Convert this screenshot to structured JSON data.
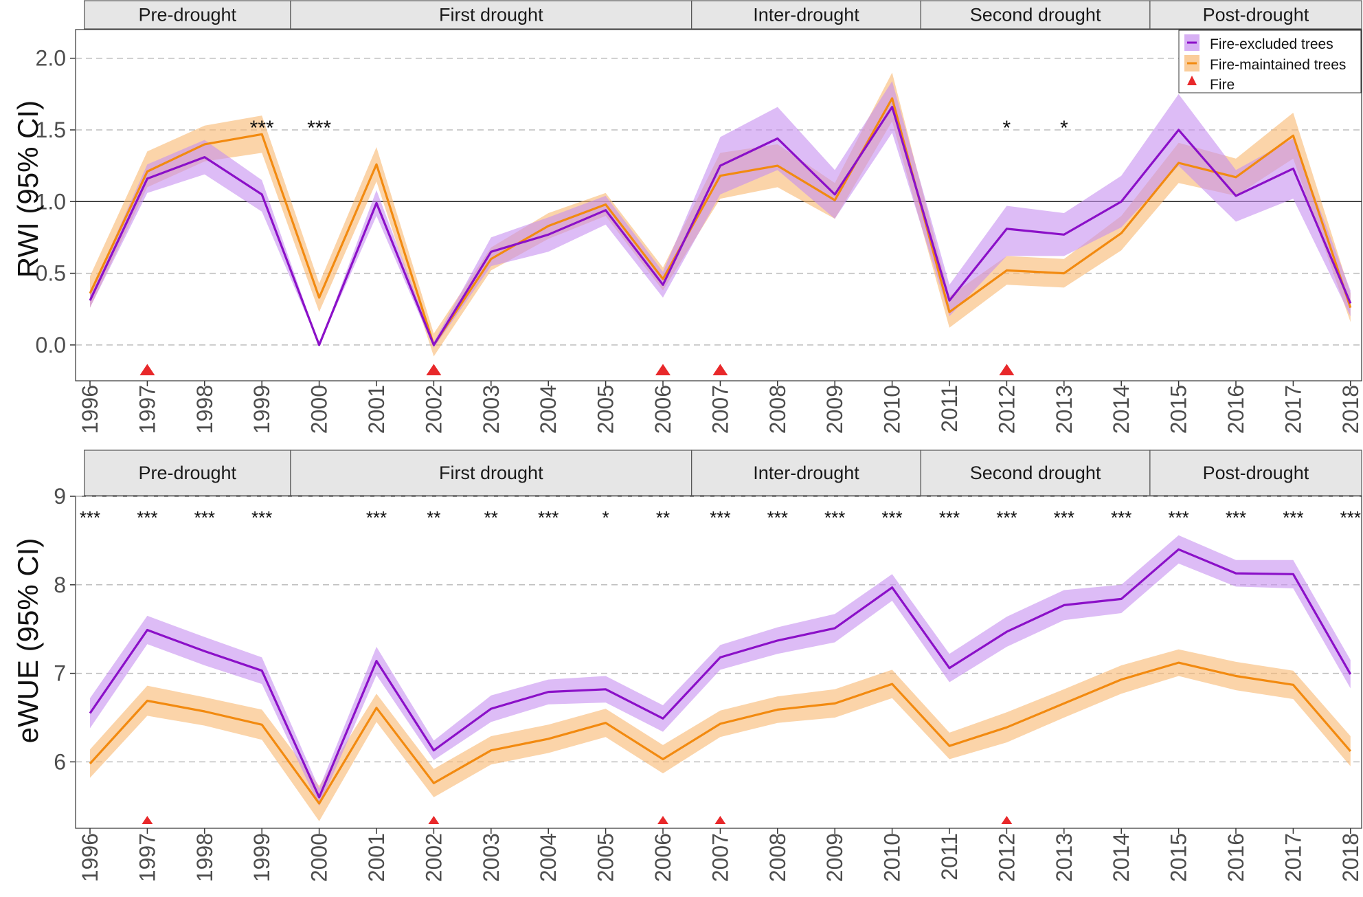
{
  "colors": {
    "excluded": "#8b10c8",
    "excluded_band": "#c68ff0",
    "maintained": "#f28a10",
    "maintained_band": "#f8b870",
    "fire": "#e8282a",
    "strip_fill": "#e6e6e6",
    "strip_border": "#555555",
    "gridline": "#bdbdbd",
    "axis_text": "#4d4d4d"
  },
  "legend": {
    "excluded_label": "Fire-excluded trees",
    "maintained_label": "Fire-maintained trees",
    "fire_label": "Fire"
  },
  "chart_data": [
    {
      "type": "line",
      "id": "rwi",
      "ylabel": "RWI (95% CI)",
      "xlabel": "",
      "ylim": [
        -0.25,
        2.2
      ],
      "yticks": [
        "0.0",
        "0.5",
        "1.0",
        "1.5",
        "2.0"
      ],
      "ytick_values": [
        0,
        0.5,
        1.0,
        1.5,
        2.0
      ],
      "reference_line": 1.0,
      "x": [
        "1996",
        "1997",
        "1998",
        "1999",
        "2000",
        "2001",
        "2002",
        "2003",
        "2004",
        "2005",
        "2006",
        "2007",
        "2008",
        "2009",
        "2010",
        "2011",
        "2012",
        "2013",
        "2014",
        "2015",
        "2016",
        "2017",
        "2018"
      ],
      "periods": [
        {
          "label": "Pre-drought",
          "from": 1995.9,
          "to": 1999.5
        },
        {
          "label": "First drought",
          "from": 1999.5,
          "to": 2006.5
        },
        {
          "label": "Inter-drought",
          "from": 2006.5,
          "to": 2010.5
        },
        {
          "label": "Second drought",
          "from": 2010.5,
          "to": 2014.5
        },
        {
          "label": "Post-drought",
          "from": 2014.5,
          "to": 2018.3
        }
      ],
      "series": [
        {
          "name": "Fire-excluded trees",
          "values": [
            0.31,
            1.16,
            1.31,
            1.05,
            0.0,
            0.99,
            0.0,
            0.65,
            0.77,
            0.94,
            0.42,
            1.25,
            1.44,
            1.05,
            1.66,
            0.31,
            0.81,
            0.77,
            1.0,
            1.5,
            1.04,
            1.23,
            0.29
          ],
          "lower": [
            0.26,
            1.06,
            1.19,
            0.93,
            0.0,
            0.9,
            -0.02,
            0.55,
            0.65,
            0.84,
            0.33,
            1.05,
            1.22,
            0.88,
            1.48,
            0.2,
            0.62,
            0.62,
            0.82,
            1.25,
            0.86,
            1.02,
            0.2
          ],
          "upper": [
            0.36,
            1.26,
            1.43,
            1.15,
            0.0,
            1.08,
            0.02,
            0.75,
            0.89,
            1.04,
            0.51,
            1.45,
            1.66,
            1.22,
            1.84,
            0.42,
            0.97,
            0.92,
            1.18,
            1.75,
            1.22,
            1.44,
            0.38
          ]
        },
        {
          "name": "Fire-maintained trees",
          "values": [
            0.36,
            1.21,
            1.4,
            1.47,
            0.33,
            1.26,
            0.0,
            0.6,
            0.83,
            0.98,
            0.46,
            1.18,
            1.25,
            1.01,
            1.72,
            0.23,
            0.52,
            0.5,
            0.78,
            1.27,
            1.17,
            1.46,
            0.26
          ],
          "lower": [
            0.26,
            1.1,
            1.28,
            1.34,
            0.23,
            1.14,
            -0.08,
            0.52,
            0.74,
            0.9,
            0.38,
            1.02,
            1.1,
            0.88,
            1.56,
            0.12,
            0.42,
            0.4,
            0.66,
            1.13,
            1.04,
            1.3,
            0.16
          ],
          "upper": [
            0.48,
            1.35,
            1.53,
            1.6,
            0.43,
            1.38,
            0.08,
            0.68,
            0.92,
            1.06,
            0.54,
            1.34,
            1.4,
            1.13,
            1.9,
            0.34,
            0.62,
            0.6,
            0.9,
            1.41,
            1.3,
            1.62,
            0.36
          ]
        }
      ],
      "fire_years": [
        "1997",
        "2002",
        "2006",
        "2007",
        "2012"
      ],
      "significance": [
        {
          "year": "1999",
          "label": "***"
        },
        {
          "year": "2000",
          "label": "***"
        },
        {
          "year": "2012",
          "label": "*"
        },
        {
          "year": "2013",
          "label": "*"
        }
      ]
    },
    {
      "type": "line",
      "id": "ewue",
      "ylabel": "eWUE (95% CI)",
      "xlabel": "",
      "ylim": [
        5.25,
        9.0
      ],
      "yticks": [
        "6",
        "7",
        "8",
        "9"
      ],
      "ytick_values": [
        6,
        7,
        8,
        9
      ],
      "x": [
        "1996",
        "1997",
        "1998",
        "1999",
        "2000",
        "2001",
        "2002",
        "2003",
        "2004",
        "2005",
        "2006",
        "2007",
        "2008",
        "2009",
        "2010",
        "2011",
        "2012",
        "2013",
        "2014",
        "2015",
        "2016",
        "2017",
        "2018"
      ],
      "periods": [
        {
          "label": "Pre-drought",
          "from": 1995.9,
          "to": 1999.5
        },
        {
          "label": "First drought",
          "from": 1999.5,
          "to": 2006.5
        },
        {
          "label": "Inter-drought",
          "from": 2006.5,
          "to": 2010.5
        },
        {
          "label": "Second drought",
          "from": 2010.5,
          "to": 2014.5
        },
        {
          "label": "Post-drought",
          "from": 2014.5,
          "to": 2018.3
        }
      ],
      "series": [
        {
          "name": "Fire-excluded trees",
          "values": [
            6.55,
            7.49,
            7.25,
            7.03,
            5.6,
            7.14,
            6.13,
            6.6,
            6.79,
            6.82,
            6.49,
            7.18,
            7.37,
            7.51,
            7.97,
            7.06,
            7.47,
            7.77,
            7.84,
            8.4,
            8.13,
            8.12,
            6.99
          ],
          "lower": [
            6.38,
            7.33,
            7.09,
            6.88,
            5.5,
            6.98,
            6.02,
            6.45,
            6.65,
            6.67,
            6.34,
            7.04,
            7.22,
            7.35,
            7.82,
            6.9,
            7.3,
            7.6,
            7.68,
            8.24,
            7.98,
            7.96,
            6.83
          ],
          "upper": [
            6.72,
            7.65,
            7.41,
            7.18,
            5.7,
            7.3,
            6.24,
            6.75,
            6.93,
            6.97,
            6.64,
            7.32,
            7.52,
            7.67,
            8.12,
            7.22,
            7.64,
            7.94,
            8.0,
            8.56,
            8.28,
            8.28,
            7.15
          ]
        },
        {
          "name": "Fire-maintained trees",
          "values": [
            5.98,
            6.69,
            6.57,
            6.42,
            5.53,
            6.61,
            5.76,
            6.13,
            6.26,
            6.44,
            6.03,
            6.43,
            6.59,
            6.66,
            6.88,
            6.18,
            6.39,
            6.66,
            6.93,
            7.12,
            6.97,
            6.87,
            6.12
          ],
          "lower": [
            5.82,
            6.52,
            6.41,
            6.25,
            5.33,
            6.45,
            5.6,
            5.97,
            6.1,
            6.28,
            5.87,
            6.28,
            6.44,
            6.5,
            6.72,
            6.03,
            6.22,
            6.5,
            6.77,
            6.97,
            6.81,
            6.71,
            5.95
          ],
          "upper": [
            6.14,
            6.86,
            6.73,
            6.59,
            5.73,
            6.77,
            5.92,
            6.29,
            6.42,
            6.6,
            6.19,
            6.58,
            6.74,
            6.82,
            7.04,
            6.33,
            6.56,
            6.82,
            7.09,
            7.27,
            7.13,
            7.03,
            6.29
          ]
        }
      ],
      "fire_years": [
        "1997",
        "2002",
        "2006",
        "2007",
        "2012"
      ],
      "significance": [
        {
          "year": "1996",
          "label": "***"
        },
        {
          "year": "1997",
          "label": "***"
        },
        {
          "year": "1998",
          "label": "***"
        },
        {
          "year": "1999",
          "label": "***"
        },
        {
          "year": "2001",
          "label": "***"
        },
        {
          "year": "2002",
          "label": "**"
        },
        {
          "year": "2003",
          "label": "**"
        },
        {
          "year": "2004",
          "label": "***"
        },
        {
          "year": "2005",
          "label": "*"
        },
        {
          "year": "2006",
          "label": "**"
        },
        {
          "year": "2007",
          "label": "***"
        },
        {
          "year": "2008",
          "label": "***"
        },
        {
          "year": "2009",
          "label": "***"
        },
        {
          "year": "2010",
          "label": "***"
        },
        {
          "year": "2011",
          "label": "***"
        },
        {
          "year": "2012",
          "label": "***"
        },
        {
          "year": "2013",
          "label": "***"
        },
        {
          "year": "2014",
          "label": "***"
        },
        {
          "year": "2015",
          "label": "***"
        },
        {
          "year": "2016",
          "label": "***"
        },
        {
          "year": "2017",
          "label": "***"
        },
        {
          "year": "2018",
          "label": "***"
        }
      ]
    }
  ]
}
